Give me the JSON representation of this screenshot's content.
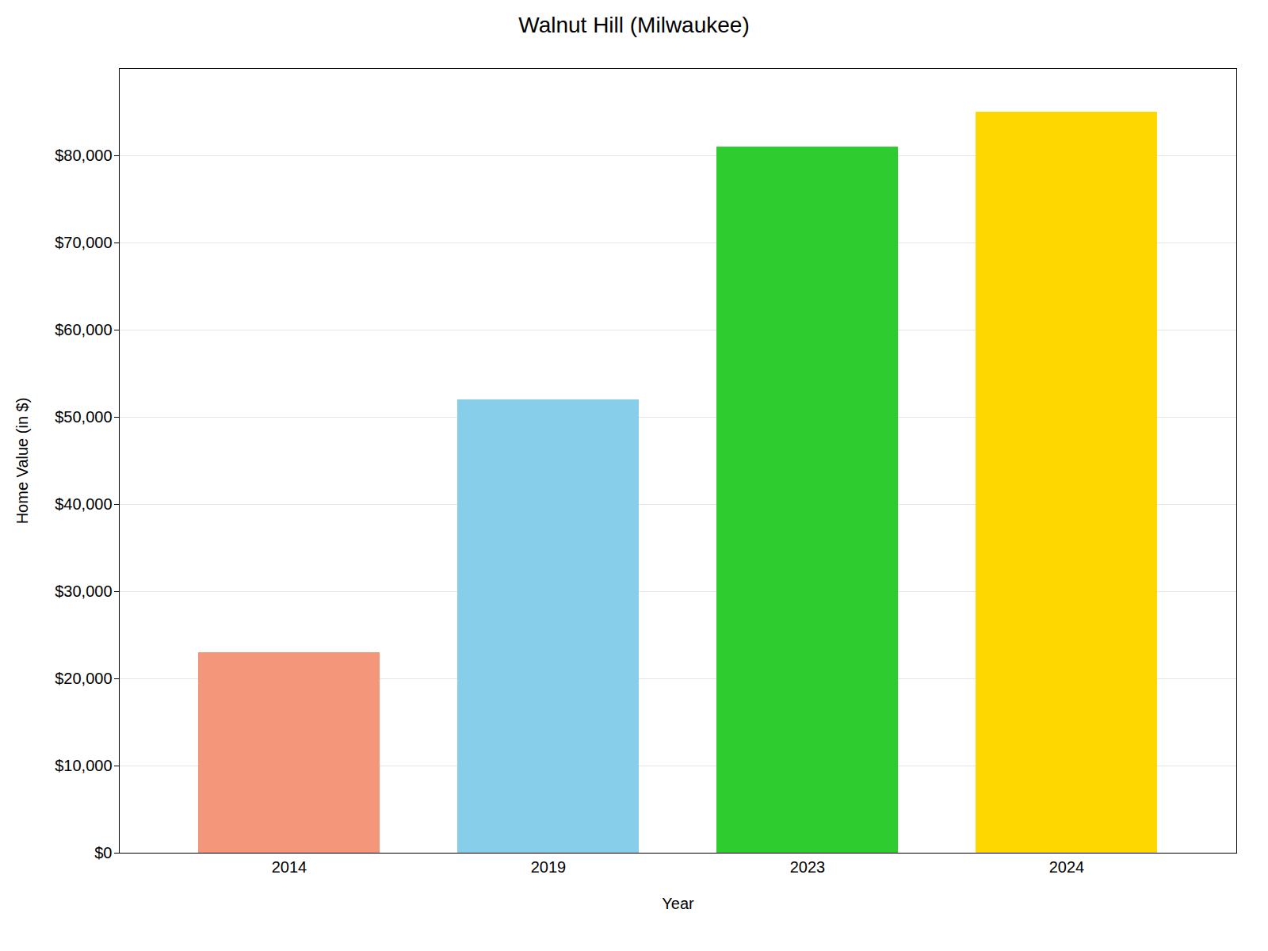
{
  "chart_data": {
    "type": "bar",
    "title": "Walnut Hill (Milwaukee)",
    "xlabel": "Year",
    "ylabel": "Home Value (in $)",
    "categories": [
      "2014",
      "2019",
      "2023",
      "2024"
    ],
    "values": [
      23000,
      52000,
      81000,
      85000
    ],
    "colors": [
      "#F4967A",
      "#87CEEB",
      "#2ECC2E",
      "#FFD700"
    ],
    "ylim": [
      0,
      90000
    ],
    "yticks": [
      {
        "value": 0,
        "label": "$0"
      },
      {
        "value": 10000,
        "label": "$10,000"
      },
      {
        "value": 20000,
        "label": "$20,000"
      },
      {
        "value": 30000,
        "label": "$30,000"
      },
      {
        "value": 40000,
        "label": "$40,000"
      },
      {
        "value": 50000,
        "label": "$50,000"
      },
      {
        "value": 60000,
        "label": "$60,000"
      },
      {
        "value": 70000,
        "label": "$70,000"
      },
      {
        "value": 80000,
        "label": "$80,000"
      }
    ],
    "grid": true
  }
}
